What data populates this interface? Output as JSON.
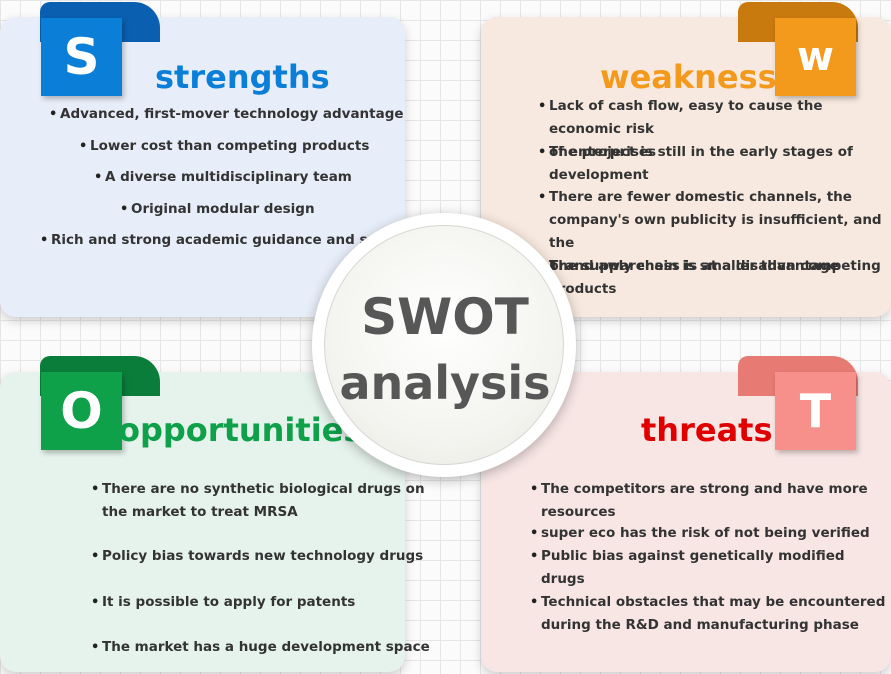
{
  "center": {
    "line1": "SWOT",
    "line2": "analysis"
  },
  "strengths": {
    "letter": "S",
    "title": "strengths",
    "items": [
      "Advanced, first-mover technology advantage",
      "Lower cost than competing products",
      "A diverse multidisciplinary team",
      "Original modular design",
      "Rich and strong academic guidance and support"
    ]
  },
  "weakness": {
    "letter": "w",
    "title": "weakness",
    "items": [
      [
        "Lack of cash flow, easy to cause the economic risk",
        "of enterprises"
      ],
      [
        "The project is still in the early stages of",
        "development"
      ],
      [
        "There are fewer domestic channels, the",
        "company's own publicity is insufficient, and the",
        "brand awareness is at a disadvantage"
      ],
      [
        "The supply chain is smaller than competing",
        "products"
      ]
    ]
  },
  "opportunities": {
    "letter": "O",
    "title": "opportunities",
    "items": [
      [
        "There are no synthetic biological drugs on",
        "the market to treat MRSA"
      ],
      [
        "Policy bias towards new technology drugs"
      ],
      [
        "It is possible to apply for patents"
      ],
      [
        "The market has a huge development space"
      ]
    ]
  },
  "threats": {
    "letter": "T",
    "title": "threats",
    "items": [
      [
        "The competitors are strong and have more",
        "resources"
      ],
      [
        "super eco has the risk of not being verified"
      ],
      [
        "Public bias against genetically modified",
        "drugs"
      ],
      [
        "Technical obstacles that may be encountered",
        "during the R&D and manufacturing phase"
      ]
    ]
  },
  "colors": {
    "strengths": "#0b7fd8",
    "weakness": "#f39a1c",
    "opportunities": "#0ea14a",
    "threats": "#e00000",
    "threats_badge": "#f7908a"
  }
}
